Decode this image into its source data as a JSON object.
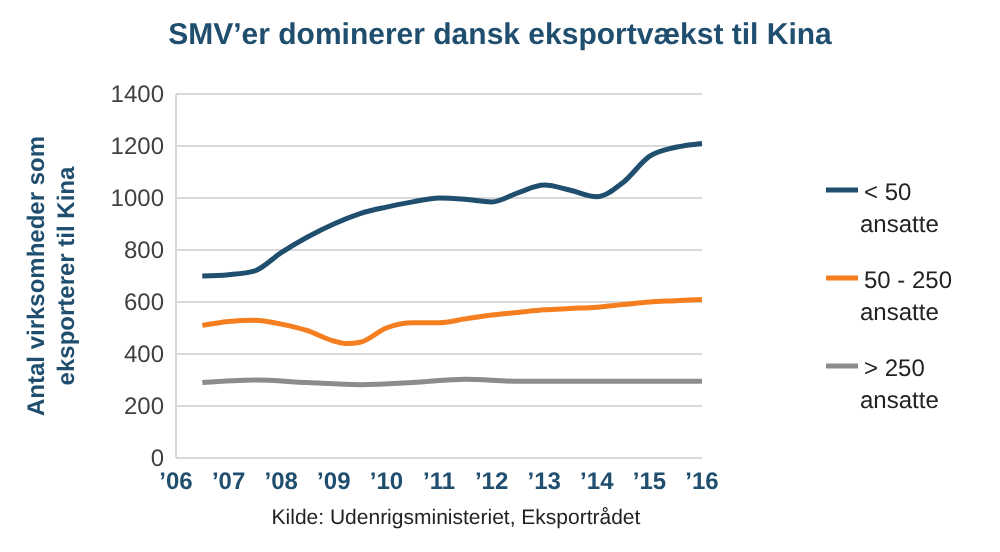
{
  "chart_data": {
    "type": "line",
    "title": "SMV’er dominerer dansk eksportvækst til Kina",
    "ylabel": "Antal virksomheder som eksporterer til Kina",
    "annotations": [
      "Kilde: Udenrigsministeriet, Eksportrådet"
    ],
    "xlim": [
      2006,
      2016
    ],
    "xticks": [
      {
        "value": 2006,
        "label": "’06"
      },
      {
        "value": 2007,
        "label": "’07"
      },
      {
        "value": 2008,
        "label": "’08"
      },
      {
        "value": 2009,
        "label": "’09"
      },
      {
        "value": 2010,
        "label": "’10"
      },
      {
        "value": 2011,
        "label": "’11"
      },
      {
        "value": 2012,
        "label": "’12"
      },
      {
        "value": 2013,
        "label": "’13"
      },
      {
        "value": 2014,
        "label": "’14"
      },
      {
        "value": 2015,
        "label": "’15"
      },
      {
        "value": 2016,
        "label": "’16"
      }
    ],
    "ylim": [
      0,
      1400
    ],
    "yticks": [
      0,
      200,
      400,
      600,
      800,
      1000,
      1200,
      1400
    ],
    "grid": "y",
    "legend": "right",
    "series": [
      {
        "name": "< 50 ansatte",
        "color": "#1f4e6e",
        "x": [
          2006.5,
          2007,
          2007.5,
          2008,
          2008.5,
          2009,
          2009.5,
          2010,
          2010.5,
          2011,
          2011.5,
          2012,
          2012.5,
          2013,
          2013.5,
          2014,
          2014.5,
          2015,
          2015.5,
          2016
        ],
        "values": [
          700,
          705,
          720,
          790,
          850,
          900,
          940,
          965,
          985,
          1000,
          995,
          985,
          1020,
          1050,
          1030,
          1005,
          1060,
          1160,
          1195,
          1210
        ]
      },
      {
        "name": "50 - 250 ansatte",
        "color": "#f57f20",
        "x": [
          2006.5,
          2007,
          2007.5,
          2008,
          2008.5,
          2009,
          2009.25,
          2009.5,
          2010,
          2010.5,
          2011,
          2011.5,
          2012,
          2012.5,
          2013,
          2013.5,
          2014,
          2014.5,
          2015,
          2015.5,
          2016
        ],
        "values": [
          510,
          525,
          530,
          515,
          490,
          450,
          440,
          445,
          500,
          520,
          520,
          535,
          550,
          560,
          570,
          575,
          580,
          590,
          600,
          605,
          610
        ]
      },
      {
        "name": "> 250 ansatte",
        "color": "#8c8c8c",
        "x": [
          2006.5,
          2007.5,
          2008.5,
          2009.5,
          2010.5,
          2011.5,
          2012.5,
          2013.5,
          2014.5,
          2015.5,
          2016
        ],
        "values": [
          290,
          300,
          290,
          282,
          290,
          303,
          295,
          295,
          295,
          295,
          295
        ]
      }
    ]
  }
}
